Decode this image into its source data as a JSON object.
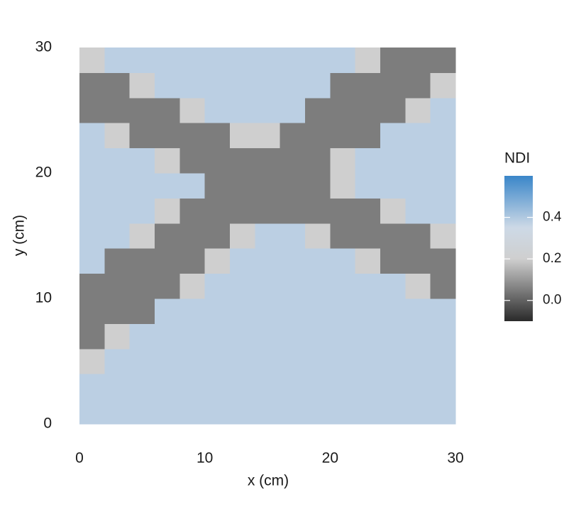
{
  "chart_data": {
    "type": "heatmap",
    "x_label": "x (cm)",
    "y_label": "y (cm)",
    "legend_title": "NDI",
    "xlim": [
      0,
      30
    ],
    "ylim": [
      0,
      30
    ],
    "xticks": [
      0,
      10,
      20,
      30
    ],
    "yticks": [
      0,
      10,
      20,
      30
    ],
    "x": [
      1,
      3,
      5,
      7,
      9,
      11,
      13,
      15,
      17,
      19,
      21,
      23,
      25,
      27,
      29
    ],
    "y": [
      1,
      3,
      5,
      7,
      9,
      11,
      13,
      15,
      17,
      19,
      21,
      23,
      25,
      27,
      29
    ],
    "z": [
      [
        0.38,
        0.38,
        0.38,
        0.38,
        0.38,
        0.38,
        0.38,
        0.38,
        0.38,
        0.38,
        0.38,
        0.38,
        0.38,
        0.38,
        0.38
      ],
      [
        0.38,
        0.38,
        0.38,
        0.38,
        0.38,
        0.38,
        0.38,
        0.38,
        0.38,
        0.38,
        0.38,
        0.38,
        0.38,
        0.38,
        0.38
      ],
      [
        0.2,
        0.38,
        0.38,
        0.38,
        0.38,
        0.38,
        0.38,
        0.38,
        0.38,
        0.38,
        0.38,
        0.38,
        0.38,
        0.38,
        0.38
      ],
      [
        0.05,
        0.2,
        0.38,
        0.38,
        0.38,
        0.38,
        0.38,
        0.38,
        0.38,
        0.38,
        0.38,
        0.38,
        0.38,
        0.38,
        0.38
      ],
      [
        0.05,
        0.05,
        0.05,
        0.38,
        0.38,
        0.38,
        0.38,
        0.38,
        0.38,
        0.38,
        0.38,
        0.38,
        0.38,
        0.38,
        0.38
      ],
      [
        0.05,
        0.05,
        0.05,
        0.05,
        0.2,
        0.38,
        0.38,
        0.38,
        0.38,
        0.38,
        0.38,
        0.38,
        0.38,
        0.2,
        0.05
      ],
      [
        0.38,
        0.05,
        0.05,
        0.05,
        0.05,
        0.2,
        0.38,
        0.38,
        0.38,
        0.38,
        0.38,
        0.2,
        0.05,
        0.05,
        0.05
      ],
      [
        0.38,
        0.38,
        0.2,
        0.05,
        0.05,
        0.05,
        0.2,
        0.38,
        0.38,
        0.2,
        0.05,
        0.05,
        0.05,
        0.05,
        0.2
      ],
      [
        0.38,
        0.38,
        0.38,
        0.2,
        0.05,
        0.05,
        0.05,
        0.05,
        0.05,
        0.05,
        0.05,
        0.05,
        0.2,
        0.38,
        0.38
      ],
      [
        0.38,
        0.38,
        0.38,
        0.38,
        0.38,
        0.05,
        0.05,
        0.05,
        0.05,
        0.05,
        0.2,
        0.38,
        0.38,
        0.38,
        0.38
      ],
      [
        0.38,
        0.38,
        0.38,
        0.2,
        0.05,
        0.05,
        0.05,
        0.05,
        0.05,
        0.05,
        0.2,
        0.38,
        0.38,
        0.38,
        0.38
      ],
      [
        0.38,
        0.2,
        0.05,
        0.05,
        0.05,
        0.05,
        0.2,
        0.2,
        0.05,
        0.05,
        0.05,
        0.05,
        0.38,
        0.38,
        0.38
      ],
      [
        0.05,
        0.05,
        0.05,
        0.05,
        0.2,
        0.38,
        0.38,
        0.38,
        0.38,
        0.05,
        0.05,
        0.05,
        0.05,
        0.2,
        0.38
      ],
      [
        0.05,
        0.05,
        0.2,
        0.38,
        0.38,
        0.38,
        0.38,
        0.38,
        0.38,
        0.38,
        0.05,
        0.05,
        0.05,
        0.05,
        0.2
      ],
      [
        0.2,
        0.38,
        0.38,
        0.38,
        0.38,
        0.38,
        0.38,
        0.38,
        0.38,
        0.38,
        0.38,
        0.2,
        0.05,
        0.05,
        0.05
      ]
    ],
    "clim": [
      -0.1,
      0.6
    ],
    "cticks": [
      {
        "value": 0,
        "label": "0.0"
      },
      0.2,
      0.4
    ],
    "colorscale": [
      [
        -0.1,
        "#2a2a2a"
      ],
      [
        0.2,
        "#cfcfcf"
      ],
      [
        0.35,
        "#cdd9e6"
      ],
      [
        0.6,
        "#3a86c9"
      ]
    ]
  }
}
